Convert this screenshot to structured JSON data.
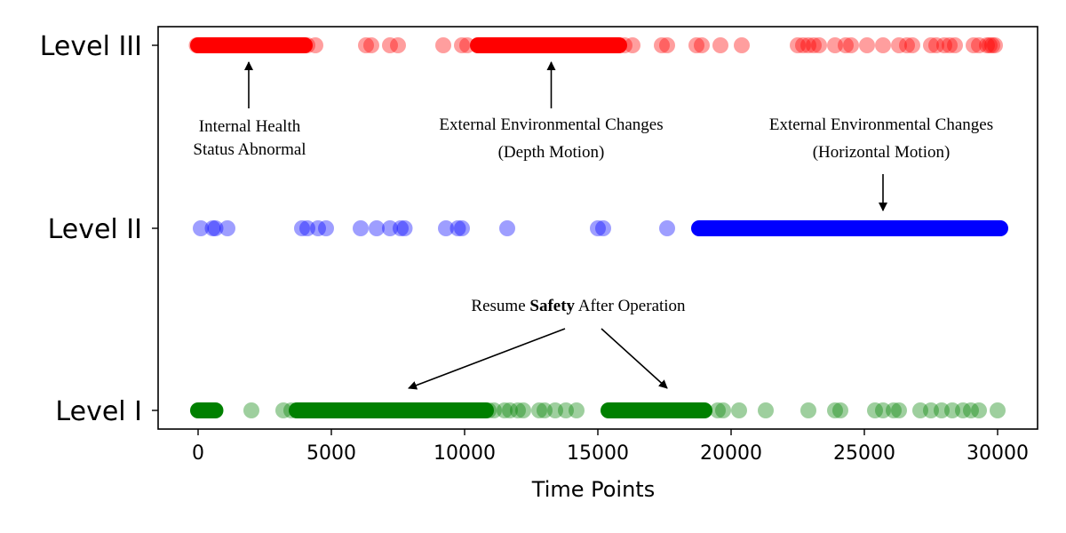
{
  "chart_data": {
    "type": "scatter",
    "title": "",
    "xlabel": "Time Points",
    "ylabel": "",
    "xlim": [
      -1500,
      31500
    ],
    "xticks": [
      0,
      5000,
      10000,
      15000,
      20000,
      25000,
      30000
    ],
    "xtick_labels": [
      "0",
      "5000",
      "10000",
      "15000",
      "20000",
      "25000",
      "30000"
    ],
    "grid": false,
    "categories": [
      "Level I",
      "Level II",
      "Level III"
    ],
    "series": [
      {
        "category": "Level III",
        "color": "#ff0000",
        "dense_ranges": [
          [
            0,
            4000
          ],
          [
            10500,
            15800
          ]
        ],
        "points": [
          -50,
          40,
          120,
          260,
          400,
          4100,
          4400,
          6300,
          6500,
          7200,
          7500,
          9200,
          9900,
          10100,
          16000,
          16300,
          17400,
          17600,
          18700,
          18900,
          19600,
          20400,
          22500,
          22700,
          22900,
          23100,
          23300,
          23900,
          24300,
          24500,
          25100,
          25700,
          26300,
          26600,
          26800,
          27500,
          27700,
          28000,
          28200,
          28400,
          29100,
          29300,
          29600,
          29700,
          29800,
          29900
        ]
      },
      {
        "category": "Level II",
        "color": "#0000ff",
        "dense_ranges": [
          [
            18800,
            30100
          ]
        ],
        "points": [
          100,
          550,
          650,
          1100,
          3900,
          4100,
          4500,
          4800,
          6100,
          6700,
          7200,
          7600,
          7750,
          9300,
          9750,
          9900,
          11600,
          15000,
          15200,
          17600
        ]
      },
      {
        "category": "Level I",
        "color": "#008000",
        "dense_ranges": [
          [
            0,
            650
          ],
          [
            3700,
            10800
          ],
          [
            15400,
            19000
          ]
        ],
        "points": [
          2000,
          3200,
          3500,
          10900,
          11100,
          11500,
          11700,
          12000,
          12200,
          12800,
          13000,
          13400,
          13800,
          14200,
          19500,
          19700,
          20300,
          21300,
          22900,
          23900,
          24100,
          25400,
          25700,
          26100,
          26300,
          27100,
          27500,
          27900,
          28300,
          28700,
          29000,
          29300,
          30000
        ]
      }
    ],
    "annotations": [
      {
        "lines": [
          {
            "text": "Internal Health"
          },
          {
            "text": "Status Abnormal"
          }
        ],
        "arrow_x": 1900,
        "arrow_from": "text",
        "arrow_to": "Level III"
      },
      {
        "lines": [
          {
            "text": "External Environmental Changes"
          },
          {
            "text": "(Depth Motion)"
          }
        ],
        "arrow_x": 13250,
        "arrow_from": "text",
        "arrow_to": "Level III"
      },
      {
        "lines": [
          {
            "text": "External Environmental Changes"
          },
          {
            "text": "(Horizontal Motion)"
          }
        ],
        "arrow_x": 25700,
        "arrow_from": "text",
        "arrow_to": "Level II"
      },
      {
        "parts": [
          {
            "text": "Resume ",
            "bold": false
          },
          {
            "text": "Safety",
            "bold": true
          },
          {
            "text": " After Operation",
            "bold": false
          }
        ],
        "arrow_targets": [
          7900,
          17600
        ],
        "arrow_to": "Level I"
      }
    ]
  }
}
